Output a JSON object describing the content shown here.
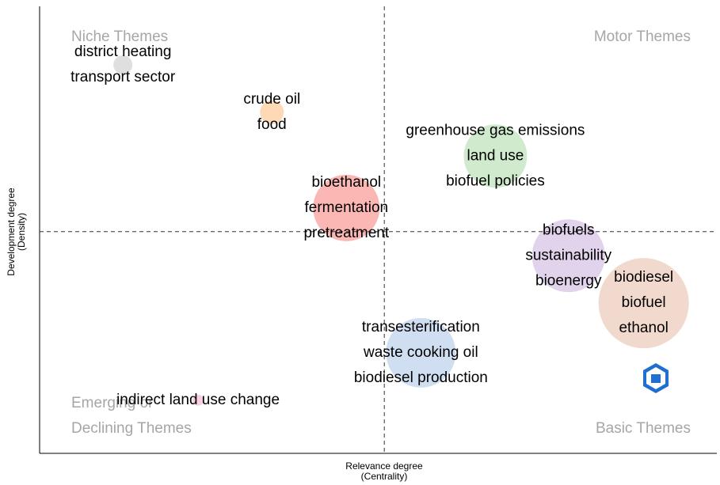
{
  "chart_data": {
    "type": "bubble",
    "x_label": [
      "Relevance degree",
      "(Centrality)"
    ],
    "y_label": [
      "Development degree",
      "(Density)"
    ],
    "quadrants": {
      "top_left": [
        "Niche Themes"
      ],
      "top_right": [
        "Motor Themes"
      ],
      "bottom_left": [
        "Emerging or",
        "Declining Themes"
      ],
      "bottom_right": [
        "Basic Themes"
      ]
    },
    "xlim": [
      0,
      100
    ],
    "ylim": [
      0,
      100
    ],
    "vline": 50.9,
    "hline": 49.6,
    "points": [
      {
        "labels": [
          "district heating",
          "transport sector"
        ],
        "x": 12.3,
        "y": 86.9,
        "size": 12,
        "color": "#d9d9d9"
      },
      {
        "labels": [
          "crude oil",
          "food"
        ],
        "x": 34.3,
        "y": 76.3,
        "size": 15,
        "color": "#fdd4a8"
      },
      {
        "labels": [
          "greenhouse gas emissions",
          "land use",
          "biofuel policies"
        ],
        "x": 67.3,
        "y": 66.5,
        "size": 40,
        "color": "#c8e6c4"
      },
      {
        "labels": [
          "bioethanol",
          "fermentation",
          "pretreatment"
        ],
        "x": 45.3,
        "y": 54.9,
        "size": 42,
        "color": "#f9aaa6"
      },
      {
        "labels": [
          "biofuels",
          "sustainability",
          "bioenergy"
        ],
        "x": 78.1,
        "y": 44.2,
        "size": 46,
        "color": "#dccbe8"
      },
      {
        "labels": [
          "biodiesel",
          "biofuel",
          "ethanol"
        ],
        "x": 89.2,
        "y": 33.6,
        "size": 57,
        "color": "#efd2c4"
      },
      {
        "labels": [
          "transesterification",
          "waste cooking oil",
          "biodiesel production"
        ],
        "x": 56.3,
        "y": 22.5,
        "size": 44,
        "color": "#c8d8ef"
      },
      {
        "labels": [
          "indirect land use change"
        ],
        "x": 23.4,
        "y": 11.9,
        "size": 7,
        "color": "#f8c8de"
      }
    ]
  }
}
